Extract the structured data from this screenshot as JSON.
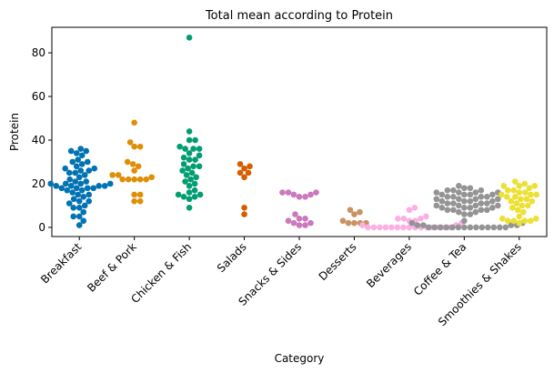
{
  "chart_data": {
    "type": "swarm",
    "title": "Total mean according to Protein",
    "x_label": "Category",
    "y_label": "Protein",
    "categories": [
      "Breakfast",
      "Beef & Pork",
      "Chicken & Fish",
      "Salads",
      "Snacks & Sides",
      "Desserts",
      "Beverages",
      "Coffee & Tea",
      "Smoothies & Shakes"
    ],
    "colors": [
      "#0173b2",
      "#de8f05",
      "#029e73",
      "#d55e00",
      "#cc78bc",
      "#ca9161",
      "#fbafe4",
      "#949494",
      "#ece133"
    ],
    "values": [
      [
        36,
        35,
        35,
        34,
        33,
        31,
        30,
        30,
        29,
        28,
        27,
        27,
        26,
        26,
        25,
        25,
        24,
        23,
        22,
        21,
        21,
        20,
        20,
        20,
        20,
        19,
        19,
        19,
        19,
        18,
        18,
        18,
        18,
        17,
        17,
        16,
        15,
        15,
        14,
        13,
        12,
        12,
        11,
        10,
        9,
        9,
        7,
        5,
        5,
        3,
        1
      ],
      [
        48,
        39,
        37,
        37,
        30,
        29,
        28,
        26,
        24,
        24,
        23,
        22,
        22,
        22,
        22,
        22,
        15,
        15,
        12,
        12
      ],
      [
        87,
        44,
        40,
        40,
        37,
        36,
        36,
        36,
        34,
        33,
        32,
        31,
        31,
        29,
        28,
        28,
        27,
        26,
        25,
        24,
        23,
        22,
        21,
        20,
        19,
        17,
        16,
        15,
        15,
        14,
        14,
        13,
        9
      ],
      [
        29,
        28,
        27,
        25,
        25,
        23,
        9,
        6
      ],
      [
        16,
        16,
        15,
        14,
        14,
        15,
        16,
        6,
        4,
        3,
        2,
        2,
        1,
        1,
        4
      ],
      [
        8,
        7,
        6,
        3,
        2,
        2,
        2,
        2
      ],
      [
        9,
        8,
        5,
        4,
        4,
        4,
        3,
        3,
        2,
        1,
        1,
        0,
        0,
        0,
        0,
        0,
        0,
        0,
        0,
        0,
        0,
        0,
        0,
        0,
        0,
        0
      ],
      [
        19,
        18,
        18,
        17,
        17,
        17,
        16,
        16,
        16,
        16,
        15,
        15,
        15,
        15,
        14,
        14,
        14,
        14,
        13,
        13,
        13,
        13,
        12,
        12,
        12,
        12,
        11,
        11,
        11,
        11,
        10,
        10,
        10,
        10,
        9,
        9,
        9,
        9,
        8,
        8,
        8,
        8,
        7,
        7,
        6,
        6,
        3,
        2,
        2,
        1,
        1,
        1,
        1,
        0,
        0,
        0,
        0,
        0,
        0,
        0,
        0,
        0,
        0,
        0,
        0,
        0,
        0
      ],
      [
        21,
        20,
        19,
        19,
        19,
        18,
        17,
        17,
        16,
        16,
        15,
        15,
        15,
        14,
        14,
        13,
        13,
        12,
        12,
        11,
        10,
        10,
        9,
        8,
        7,
        5,
        4,
        4,
        3,
        3,
        3,
        3,
        2
      ]
    ],
    "ylim": [
      -4.2,
      91.7
    ],
    "yticks": [
      0,
      20,
      40,
      60,
      80
    ]
  }
}
